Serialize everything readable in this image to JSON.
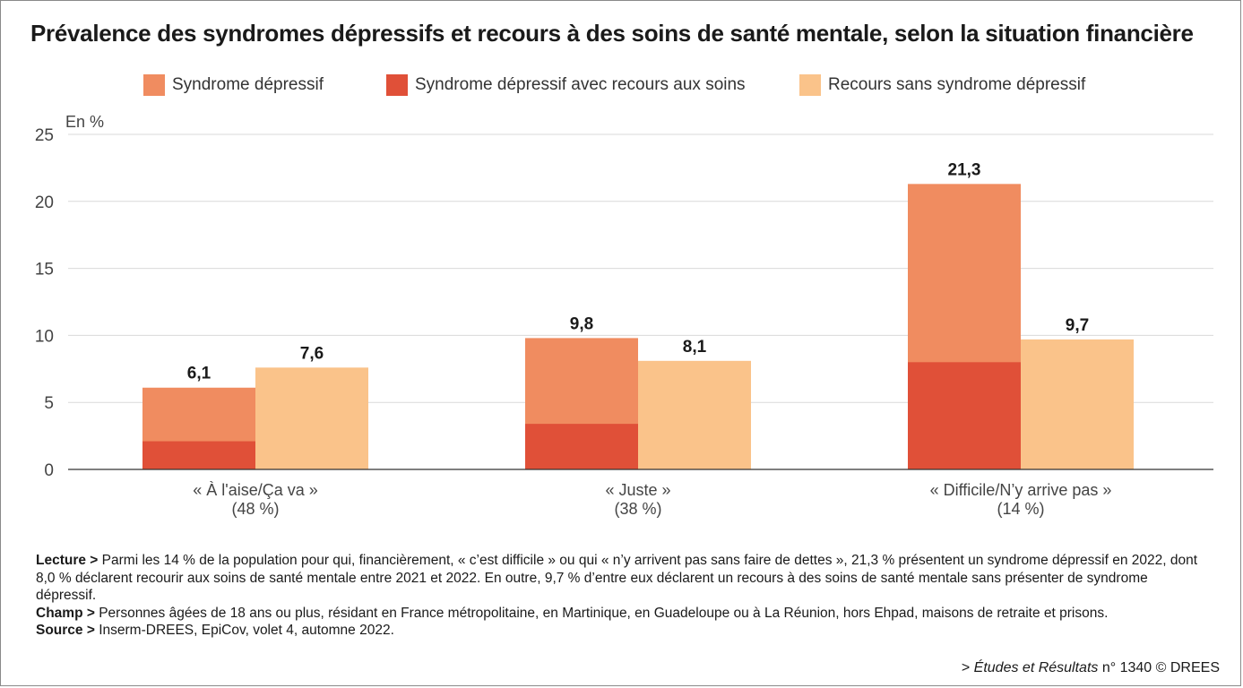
{
  "title": "Prévalence des syndromes dépressifs et recours à des soins de santé mentale, selon la situation financière",
  "legend": [
    {
      "label": "Syndrome dépressif",
      "color": "#f08c60"
    },
    {
      "label": "Syndrome dépressif avec recours aux soins",
      "color": "#e05038"
    },
    {
      "label": "Recours sans syndrome dépressif",
      "color": "#fac38a"
    }
  ],
  "chart_data": {
    "type": "bar",
    "ylabel": "En %",
    "ylim": [
      0,
      25
    ],
    "yticks": [
      "0",
      "5",
      "10",
      "15",
      "20",
      "25"
    ],
    "grid": true,
    "legend_position": "top",
    "categories": [
      {
        "label": "« À l'aise/Ça va »",
        "share": "(48 %)"
      },
      {
        "label": "« Juste »",
        "share": "(38 %)"
      },
      {
        "label": "« Difficile/N’y arrive pas »",
        "share": "(14 %)"
      }
    ],
    "series": [
      {
        "name": "Syndrome dépressif",
        "values": [
          6.1,
          9.8,
          21.3
        ],
        "labels": [
          "6,1",
          "9,8",
          "21,3"
        ],
        "color": "#f08c60"
      },
      {
        "name": "Syndrome dépressif avec recours aux soins",
        "values": [
          2.1,
          3.4,
          8.0
        ],
        "color": "#e05038"
      },
      {
        "name": "Recours sans syndrome dépressif",
        "values": [
          7.6,
          8.1,
          9.7
        ],
        "labels": [
          "7,6",
          "8,1",
          "9,7"
        ],
        "color": "#fac38a"
      }
    ]
  },
  "notes": {
    "lecture_label": "Lecture >",
    "lecture_text": " Parmi les 14 % de la population pour qui, financièrement, « c’est difficile » ou qui « n’y arrivent pas sans faire de dettes », 21,3 % présentent un syndrome dépressif en 2022, dont 8,0 % déclarent recourir aux soins de santé mentale entre 2021 et 2022. En outre, 9,7 % d’entre eux déclarent un recours à des soins de santé mentale sans présenter de syndrome dépressif.",
    "champ_label": "Champ >",
    "champ_text": " Personnes âgées de 18 ans ou plus, résidant en France métropolitaine, en Martinique, en Guadeloupe ou à La Réunion, hors Ehpad, maisons de retraite et prisons.",
    "source_label": "Source >",
    "source_text": " Inserm-DREES, EpiCov, volet 4, automne 2022."
  },
  "footer": {
    "prefix": "> ",
    "publication": "Études et Résultats",
    "suffix": " n° 1340 © DREES"
  }
}
